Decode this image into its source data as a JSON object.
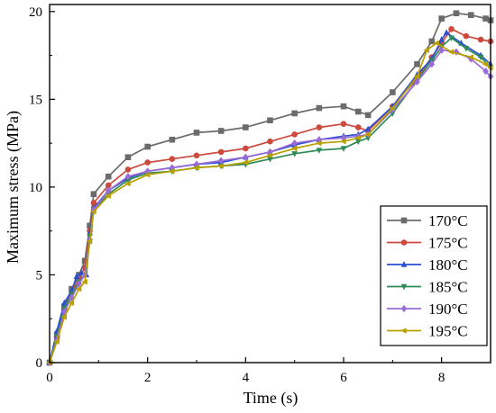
{
  "chart_data": {
    "type": "line",
    "xlabel": "Time (s)",
    "ylabel": "Maximum stress (MPa)",
    "xlim": [
      0,
      9
    ],
    "ylim": [
      0,
      20.4
    ],
    "xticks": [
      "0",
      "2",
      "4",
      "6",
      "8"
    ],
    "yticks": [
      "0",
      "5",
      "10",
      "15",
      "20"
    ],
    "grid": false,
    "legend_position": "bottom-right",
    "series": [
      {
        "name": "170°C",
        "color": "#6b6b6b",
        "marker": "square",
        "points": [
          [
            0,
            0
          ],
          [
            0.15,
            1.6
          ],
          [
            0.3,
            3.2
          ],
          [
            0.45,
            4.2
          ],
          [
            0.6,
            5.0
          ],
          [
            0.72,
            5.8
          ],
          [
            0.82,
            7.8
          ],
          [
            0.9,
            9.6
          ],
          [
            1.2,
            10.6
          ],
          [
            1.6,
            11.7
          ],
          [
            2.0,
            12.3
          ],
          [
            2.5,
            12.7
          ],
          [
            3.0,
            13.1
          ],
          [
            3.5,
            13.2
          ],
          [
            4.0,
            13.4
          ],
          [
            4.5,
            13.8
          ],
          [
            5.0,
            14.2
          ],
          [
            5.5,
            14.5
          ],
          [
            6.0,
            14.6
          ],
          [
            6.3,
            14.3
          ],
          [
            6.5,
            14.1
          ],
          [
            7.0,
            15.4
          ],
          [
            7.5,
            17.0
          ],
          [
            7.8,
            18.3
          ],
          [
            8.0,
            19.6
          ],
          [
            8.3,
            19.9
          ],
          [
            8.6,
            19.8
          ],
          [
            8.9,
            19.6
          ],
          [
            9.0,
            19.5
          ]
        ]
      },
      {
        "name": "175°C",
        "color": "#cc4a3d",
        "marker": "circle",
        "points": [
          [
            0,
            0
          ],
          [
            0.15,
            1.4
          ],
          [
            0.3,
            3.0
          ],
          [
            0.45,
            4.0
          ],
          [
            0.6,
            4.8
          ],
          [
            0.72,
            5.4
          ],
          [
            0.82,
            7.5
          ],
          [
            0.9,
            9.1
          ],
          [
            1.2,
            10.1
          ],
          [
            1.6,
            11.0
          ],
          [
            2.0,
            11.4
          ],
          [
            2.5,
            11.6
          ],
          [
            3.0,
            11.8
          ],
          [
            3.5,
            12.0
          ],
          [
            4.0,
            12.2
          ],
          [
            4.5,
            12.6
          ],
          [
            5.0,
            13.0
          ],
          [
            5.5,
            13.4
          ],
          [
            6.0,
            13.6
          ],
          [
            6.3,
            13.4
          ],
          [
            6.5,
            13.2
          ],
          [
            7.0,
            14.6
          ],
          [
            7.5,
            16.2
          ],
          [
            7.8,
            17.4
          ],
          [
            8.0,
            18.2
          ],
          [
            8.2,
            19.0
          ],
          [
            8.5,
            18.6
          ],
          [
            8.8,
            18.4
          ],
          [
            9.0,
            18.3
          ]
        ]
      },
      {
        "name": "180°C",
        "color": "#2a4fd1",
        "marker": "triangle-up",
        "points": [
          [
            0,
            0
          ],
          [
            0.15,
            1.8
          ],
          [
            0.3,
            3.4
          ],
          [
            0.45,
            4.1
          ],
          [
            0.55,
            4.9
          ],
          [
            0.65,
            5.1
          ],
          [
            0.75,
            5.0
          ],
          [
            0.82,
            7.4
          ],
          [
            0.9,
            8.8
          ],
          [
            1.2,
            9.8
          ],
          [
            1.6,
            10.5
          ],
          [
            2.0,
            10.9
          ],
          [
            2.5,
            11.1
          ],
          [
            3.0,
            11.3
          ],
          [
            3.5,
            11.4
          ],
          [
            4.0,
            11.7
          ],
          [
            4.5,
            12.0
          ],
          [
            5.0,
            12.4
          ],
          [
            5.5,
            12.7
          ],
          [
            6.0,
            12.9
          ],
          [
            6.3,
            13.0
          ],
          [
            6.5,
            13.3
          ],
          [
            7.0,
            14.6
          ],
          [
            7.5,
            16.4
          ],
          [
            7.8,
            17.3
          ],
          [
            8.0,
            18.4
          ],
          [
            8.1,
            18.8
          ],
          [
            8.4,
            18.2
          ],
          [
            8.8,
            17.5
          ],
          [
            9.0,
            17.0
          ]
        ]
      },
      {
        "name": "185°C",
        "color": "#2e8b57",
        "marker": "triangle-down",
        "points": [
          [
            0,
            0
          ],
          [
            0.15,
            1.5
          ],
          [
            0.3,
            3.1
          ],
          [
            0.45,
            3.9
          ],
          [
            0.6,
            4.6
          ],
          [
            0.72,
            5.0
          ],
          [
            0.82,
            7.2
          ],
          [
            0.9,
            8.7
          ],
          [
            1.2,
            9.6
          ],
          [
            1.6,
            10.4
          ],
          [
            2.0,
            10.8
          ],
          [
            2.5,
            10.9
          ],
          [
            3.0,
            11.1
          ],
          [
            3.5,
            11.2
          ],
          [
            4.0,
            11.3
          ],
          [
            4.5,
            11.6
          ],
          [
            5.0,
            11.9
          ],
          [
            5.5,
            12.1
          ],
          [
            6.0,
            12.2
          ],
          [
            6.3,
            12.6
          ],
          [
            6.5,
            12.8
          ],
          [
            7.0,
            14.2
          ],
          [
            7.5,
            16.1
          ],
          [
            7.8,
            17.2
          ],
          [
            8.0,
            18.0
          ],
          [
            8.2,
            18.5
          ],
          [
            8.5,
            17.9
          ],
          [
            8.8,
            17.4
          ],
          [
            9.0,
            16.8
          ]
        ]
      },
      {
        "name": "190°C",
        "color": "#9a6bd6",
        "marker": "diamond",
        "points": [
          [
            0,
            0
          ],
          [
            0.15,
            1.3
          ],
          [
            0.3,
            2.9
          ],
          [
            0.45,
            3.7
          ],
          [
            0.6,
            4.5
          ],
          [
            0.72,
            5.0
          ],
          [
            0.82,
            7.0
          ],
          [
            0.9,
            8.7
          ],
          [
            1.2,
            9.8
          ],
          [
            1.6,
            10.6
          ],
          [
            2.0,
            10.9
          ],
          [
            2.5,
            11.1
          ],
          [
            3.0,
            11.3
          ],
          [
            3.5,
            11.5
          ],
          [
            4.0,
            11.7
          ],
          [
            4.5,
            12.0
          ],
          [
            5.0,
            12.5
          ],
          [
            5.5,
            12.7
          ],
          [
            6.0,
            12.8
          ],
          [
            6.3,
            12.9
          ],
          [
            6.5,
            13.0
          ],
          [
            7.0,
            14.4
          ],
          [
            7.5,
            16.0
          ],
          [
            7.8,
            17.0
          ],
          [
            8.0,
            17.8
          ],
          [
            8.3,
            17.7
          ],
          [
            8.6,
            17.3
          ],
          [
            8.9,
            16.6
          ],
          [
            9.0,
            16.3
          ]
        ]
      },
      {
        "name": "195°C",
        "color": "#b8a000",
        "marker": "triangle-left",
        "points": [
          [
            0,
            0
          ],
          [
            0.15,
            1.2
          ],
          [
            0.3,
            2.6
          ],
          [
            0.45,
            3.4
          ],
          [
            0.6,
            4.2
          ],
          [
            0.72,
            4.6
          ],
          [
            0.82,
            6.9
          ],
          [
            0.9,
            8.6
          ],
          [
            1.2,
            9.5
          ],
          [
            1.6,
            10.2
          ],
          [
            2.0,
            10.7
          ],
          [
            2.5,
            10.9
          ],
          [
            3.0,
            11.1
          ],
          [
            3.5,
            11.2
          ],
          [
            4.0,
            11.4
          ],
          [
            4.5,
            11.8
          ],
          [
            5.0,
            12.2
          ],
          [
            5.5,
            12.5
          ],
          [
            6.0,
            12.6
          ],
          [
            6.3,
            12.8
          ],
          [
            6.5,
            13.0
          ],
          [
            7.0,
            14.5
          ],
          [
            7.5,
            16.3
          ],
          [
            7.7,
            17.8
          ],
          [
            7.9,
            18.2
          ],
          [
            8.2,
            17.7
          ],
          [
            8.6,
            17.4
          ],
          [
            8.9,
            17.0
          ],
          [
            9.0,
            16.8
          ]
        ]
      }
    ]
  }
}
